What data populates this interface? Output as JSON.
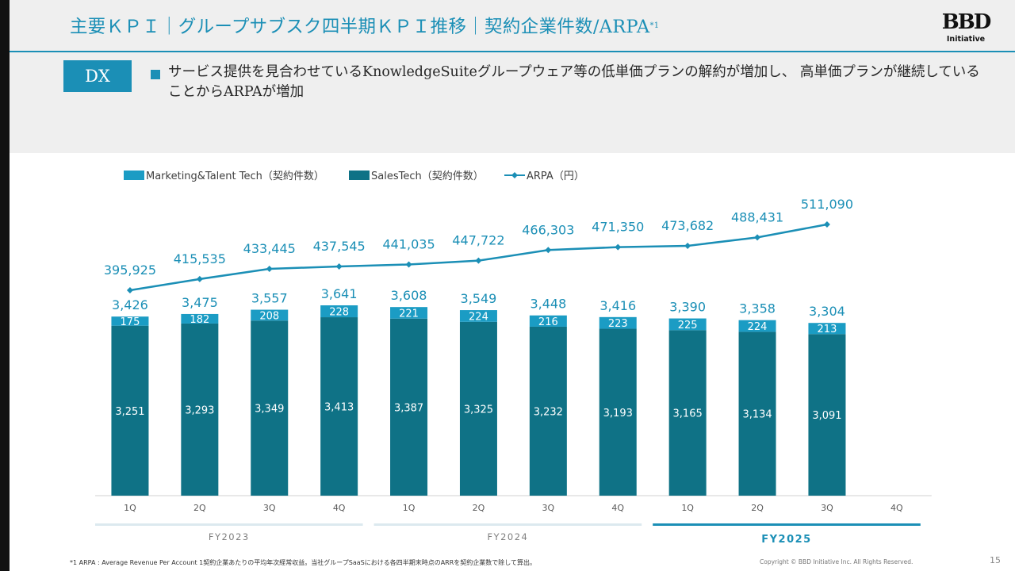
{
  "header": {
    "title": "主要ＫＰＩ｜グループサブスク四半期ＫＰＩ推移｜契約企業件数/ARPA",
    "title_note": "*1",
    "logo_text": "BBD",
    "logo_sub": "Initiative"
  },
  "summary": {
    "badge": "DX",
    "bullet": "サービス提供を見合わせているKnowledgeSuiteグループウェア等の低単価プランの解約が増加し、 高単価プランが継続していることからARPAが増加"
  },
  "colors": {
    "accent": "#1b8fb6",
    "marketing": "#1b9cc4",
    "salestech": "#0f7286",
    "arpa_line": "#1b8fb6"
  },
  "chart_data": {
    "type": "bar",
    "stacked": true,
    "legend": [
      "Marketing&Talent Tech（契約件数）",
      "SalesTech（契約件数）",
      "ARPA（円）"
    ],
    "legend_position": "top-left",
    "categories": [
      "1Q",
      "2Q",
      "3Q",
      "4Q",
      "1Q",
      "2Q",
      "3Q",
      "4Q",
      "1Q",
      "2Q",
      "3Q",
      "4Q"
    ],
    "fiscal_years": [
      {
        "label": "FY2023",
        "quarters": 4,
        "current": false
      },
      {
        "label": "FY2024",
        "quarters": 4,
        "current": false
      },
      {
        "label": "FY2025",
        "quarters": 4,
        "current": true
      }
    ],
    "series": [
      {
        "name": "SalesTech（契約件数）",
        "values": [
          3251,
          3293,
          3349,
          3413,
          3387,
          3325,
          3232,
          3193,
          3165,
          3134,
          3091,
          null
        ]
      },
      {
        "name": "Marketing&Talent Tech（契約件数）",
        "values": [
          175,
          182,
          208,
          228,
          221,
          224,
          216,
          223,
          225,
          224,
          213,
          null
        ]
      }
    ],
    "totals": [
      3426,
      3475,
      3557,
      3641,
      3608,
      3549,
      3448,
      3416,
      3390,
      3358,
      3304,
      null
    ],
    "arpa": {
      "name": "ARPA（円）",
      "values": [
        395925,
        415535,
        433445,
        437545,
        441035,
        447722,
        466303,
        471350,
        473682,
        488431,
        511090,
        null
      ]
    },
    "grid": false
  },
  "footer": {
    "footnote": "*1 ARPA : Average Revenue Per Account 1契約企業あたりの平均年次経常収益。当社グループSaaSにおける各四半期末時点のARRを契約企業数で除して算出。",
    "copyright": "Copyright © BBD Initiative Inc. All Rights Reserved.",
    "page_number": "15"
  }
}
